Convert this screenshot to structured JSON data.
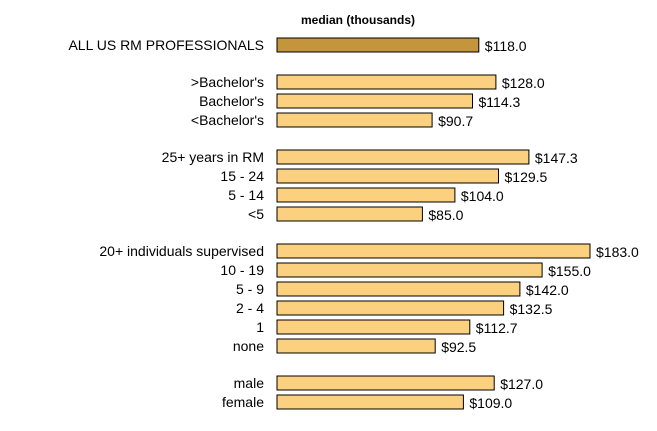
{
  "chart_data": {
    "type": "bar",
    "orientation": "horizontal",
    "title": "median (thousands)",
    "xlabel": "",
    "ylabel": "",
    "xlim": [
      0,
      190
    ],
    "grid": false,
    "legend": "none",
    "value_prefix": "$",
    "value_decimals": 1,
    "colors": {
      "highlight": "#c4953a",
      "bar": "#fbd07e",
      "border": "#000000"
    },
    "groups": [
      {
        "bars": [
          {
            "label": "ALL US RM PROFESSIONALS",
            "value": 118.0,
            "highlight": true
          }
        ]
      },
      {
        "bars": [
          {
            "label": ">Bachelor's",
            "value": 128.0
          },
          {
            "label": "Bachelor's",
            "value": 114.3
          },
          {
            "label": "<Bachelor's",
            "value": 90.7
          }
        ]
      },
      {
        "bars": [
          {
            "label": "25+ years in RM",
            "value": 147.3
          },
          {
            "label": "15 - 24",
            "value": 129.5
          },
          {
            "label": "5 - 14",
            "value": 104.0
          },
          {
            "label": "<5",
            "value": 85.0
          }
        ]
      },
      {
        "bars": [
          {
            "label": "20+ individuals supervised",
            "value": 183.0
          },
          {
            "label": "10 - 19",
            "value": 155.0
          },
          {
            "label": "5 - 9",
            "value": 142.0
          },
          {
            "label": "2 - 4",
            "value": 132.5
          },
          {
            "label": "1",
            "value": 112.7
          },
          {
            "label": "none",
            "value": 92.5
          }
        ]
      },
      {
        "bars": [
          {
            "label": "male",
            "value": 127.0
          },
          {
            "label": "female",
            "value": 109.0
          }
        ]
      }
    ]
  }
}
